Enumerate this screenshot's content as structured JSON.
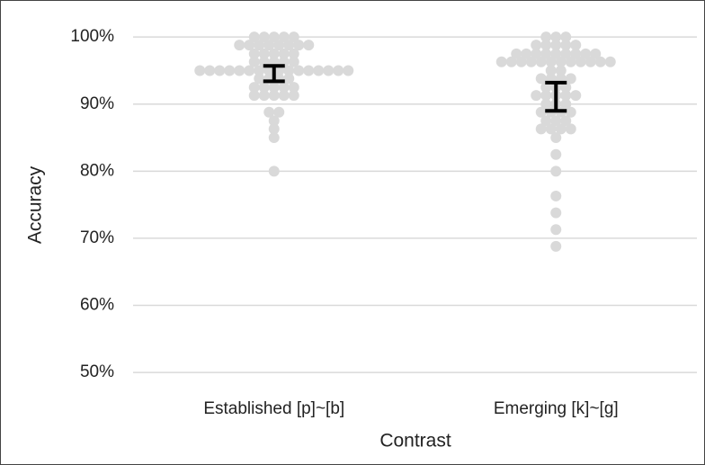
{
  "chart_data": {
    "type": "beeswarm",
    "x_label": "Contrast",
    "y_label": "Accuracy",
    "categories": [
      "Established [p]~[b]",
      "Emerging [k]~[g]"
    ],
    "groups": [
      {
        "values": [
          100,
          100,
          100,
          100,
          100,
          98.8,
          98.8,
          98.8,
          98.8,
          98.8,
          98.8,
          98.8,
          98.8,
          97.5,
          97.5,
          97.5,
          97.5,
          97.5,
          96.3,
          96.3,
          96.3,
          96.3,
          96.3,
          95,
          95,
          95,
          95,
          95,
          95,
          95,
          95,
          95,
          95,
          95,
          95,
          95,
          95,
          95,
          95,
          93.8,
          93.8,
          93.8,
          93.8,
          92.5,
          92.5,
          92.5,
          92.5,
          92.5,
          91.3,
          91.3,
          91.3,
          91.3,
          91.3,
          88.8,
          88.8,
          87.5,
          86.3,
          85,
          80
        ],
        "ci": [
          93.4,
          95.7
        ]
      },
      {
        "values": [
          100,
          100,
          100,
          98.8,
          98.8,
          98.8,
          98.8,
          98.8,
          97.5,
          97.5,
          97.5,
          97.5,
          97.5,
          97.5,
          97.5,
          97.5,
          97.5,
          96.3,
          96.3,
          96.3,
          96.3,
          96.3,
          96.3,
          96.3,
          96.3,
          96.3,
          96.3,
          96.3,
          96.3,
          95,
          95,
          93.8,
          93.8,
          93.8,
          93.8,
          92.5,
          92.5,
          92.5,
          91.3,
          91.3,
          91.3,
          91.3,
          91.3,
          90,
          90,
          90,
          88.8,
          88.8,
          88.8,
          88.8,
          87.5,
          87.5,
          87.5,
          86.3,
          86.3,
          86.3,
          86.3,
          85,
          82.5,
          80,
          76.3,
          73.8,
          71.3,
          68.8
        ],
        "ci": [
          89,
          93.2
        ]
      }
    ],
    "point_color": "#d9d9d9",
    "ci_color": "#000000",
    "grid": true,
    "ylim": [
      48,
      101.5
    ],
    "yticks": [
      {
        "value": 50,
        "label": "50%"
      },
      {
        "value": 60,
        "label": "60%"
      },
      {
        "value": 70,
        "label": "70%"
      },
      {
        "value": 80,
        "label": "80%"
      },
      {
        "value": 90,
        "label": "90%"
      },
      {
        "value": 100,
        "label": "100%"
      }
    ]
  }
}
